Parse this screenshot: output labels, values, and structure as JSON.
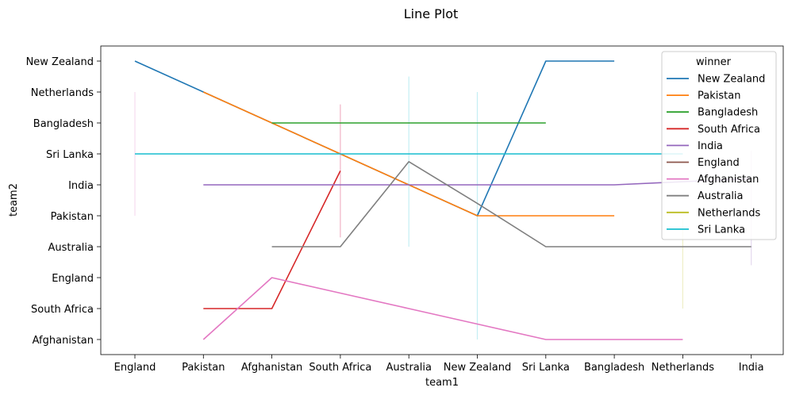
{
  "chart_data": {
    "type": "line",
    "title": "Line Plot",
    "xlabel": "team1",
    "ylabel": "team2",
    "x_categories": [
      "England",
      "Pakistan",
      "Afghanistan",
      "South Africa",
      "Australia",
      "New Zealand",
      "Sri Lanka",
      "Bangladesh",
      "Netherlands",
      "India"
    ],
    "y_categories": [
      "New Zealand",
      "Netherlands",
      "Bangladesh",
      "Sri Lanka",
      "India",
      "Pakistan",
      "Australia",
      "England",
      "South Africa",
      "Afghanistan"
    ],
    "legend": {
      "title": "winner",
      "placement": "top-right"
    },
    "grid": false,
    "series": [
      {
        "name": "New Zealand",
        "color": "#1f77b4",
        "points": [
          [
            "England",
            0
          ],
          [
            "Pakistan",
            1
          ],
          [
            "New Zealand",
            5
          ],
          [
            "Sri Lanka",
            0
          ],
          [
            "Bangladesh",
            0
          ]
        ],
        "bands": []
      },
      {
        "name": "Pakistan",
        "color": "#ff7f0e",
        "points": [
          [
            "Pakistan",
            1
          ],
          [
            "Afghanistan",
            2
          ],
          [
            "South Africa",
            3
          ],
          [
            "Australia",
            4
          ],
          [
            "New Zealand",
            5
          ],
          [
            "Sri Lanka",
            5
          ],
          [
            "Bangladesh",
            5
          ]
        ],
        "bands": []
      },
      {
        "name": "Bangladesh",
        "color": "#2ca02c",
        "points": [
          [
            "Afghanistan",
            2
          ],
          [
            "South Africa",
            2
          ],
          [
            "Australia",
            2
          ],
          [
            "New Zealand",
            2
          ],
          [
            "Sri Lanka",
            2
          ]
        ],
        "bands": []
      },
      {
        "name": "South Africa",
        "color": "#d62728",
        "points": [
          [
            "Pakistan",
            8
          ],
          [
            "Afghanistan",
            8
          ],
          [
            "South Africa",
            3.55
          ]
        ],
        "bands": [
          [
            "South Africa",
            1.4,
            5.7
          ]
        ]
      },
      {
        "name": "India",
        "color": "#9467bd",
        "points": [
          [
            "Pakistan",
            4
          ],
          [
            "Afghanistan",
            4
          ],
          [
            "South Africa",
            4
          ],
          [
            "Australia",
            4
          ],
          [
            "New Zealand",
            4
          ],
          [
            "Sri Lanka",
            4
          ],
          [
            "Bangladesh",
            4
          ],
          [
            "Netherlands",
            3.9
          ],
          [
            "India",
            3.8
          ]
        ],
        "bands": [
          [
            "India",
            2.9,
            6.6
          ]
        ]
      },
      {
        "name": "England",
        "color": "#8c564b",
        "points": [],
        "bands": []
      },
      {
        "name": "Afghanistan",
        "color": "#e377c2",
        "points": [
          [
            "Pakistan",
            9
          ],
          [
            "Afghanistan",
            7
          ],
          [
            "South Africa",
            7.5
          ],
          [
            "Australia",
            8
          ],
          [
            "New Zealand",
            8.5
          ],
          [
            "Sri Lanka",
            9
          ],
          [
            "Bangladesh",
            9
          ],
          [
            "Netherlands",
            9
          ]
        ],
        "bands": [
          [
            "England",
            1,
            5
          ],
          [
            "South Africa",
            1.4,
            5.7
          ]
        ]
      },
      {
        "name": "Australia",
        "color": "#7f7f7f",
        "points": [
          [
            "Afghanistan",
            6
          ],
          [
            "South Africa",
            6
          ],
          [
            "Australia",
            3.25
          ],
          [
            "New Zealand",
            4.6
          ],
          [
            "Sri Lanka",
            6
          ],
          [
            "Bangladesh",
            6
          ],
          [
            "Netherlands",
            6
          ],
          [
            "India",
            6
          ]
        ],
        "bands": []
      },
      {
        "name": "Netherlands",
        "color": "#bcbd22",
        "points": [],
        "bands": [
          [
            "Netherlands",
            5.1,
            8
          ]
        ]
      },
      {
        "name": "Sri Lanka",
        "color": "#17becf",
        "points": [
          [
            "England",
            3
          ],
          [
            "Pakistan",
            3
          ],
          [
            "Afghanistan",
            3
          ],
          [
            "South Africa",
            3
          ],
          [
            "Australia",
            3
          ],
          [
            "New Zealand",
            3
          ],
          [
            "Sri Lanka",
            3
          ],
          [
            "Bangladesh",
            3
          ],
          [
            "Netherlands",
            3
          ]
        ],
        "bands": [
          [
            "Australia",
            0.5,
            6
          ],
          [
            "New Zealand",
            1,
            9
          ]
        ]
      }
    ]
  }
}
